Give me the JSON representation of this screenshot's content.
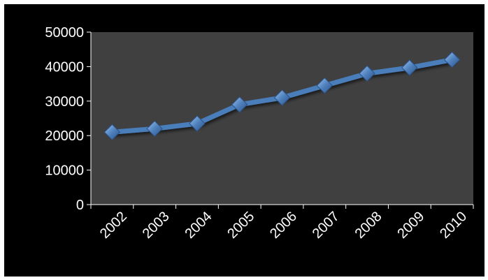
{
  "chart_data": {
    "type": "line",
    "categories": [
      "2002",
      "2003",
      "2004",
      "2005",
      "2006",
      "2007",
      "2008",
      "2009",
      "2010"
    ],
    "series": [
      {
        "values": [
          21000,
          22000,
          23500,
          29000,
          31000,
          34500,
          38000,
          39700,
          42000
        ]
      }
    ],
    "ylim": [
      0,
      50000
    ],
    "yticks": [
      "0",
      "10000",
      "20000",
      "30000",
      "40000",
      "50000"
    ],
    "grid": false,
    "legend": "none",
    "colors": {
      "background": "#000000",
      "plot_area": "#404040",
      "line": "#4a7ebb",
      "marker": "#4f81bd",
      "text": "#ffffff",
      "axis": "#ffffff"
    }
  }
}
